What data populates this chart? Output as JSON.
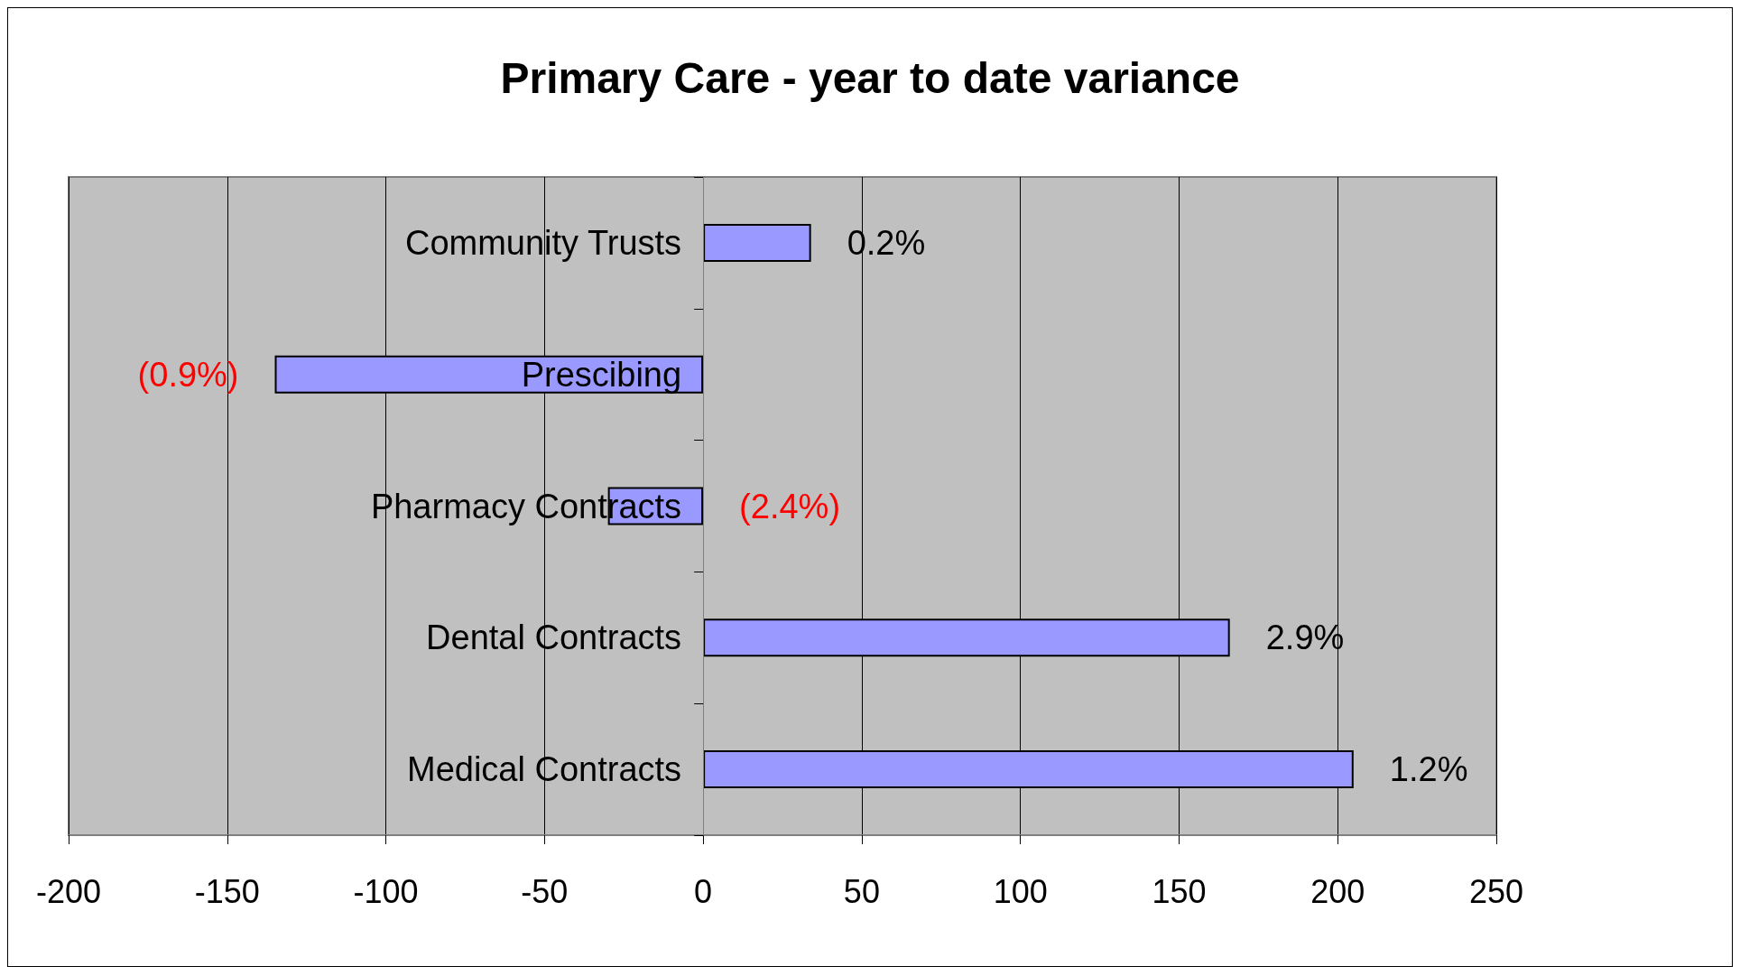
{
  "chart_data": {
    "type": "bar",
    "orientation": "horizontal",
    "title": "Primary Care - year to date variance",
    "categories": [
      "Community Trusts",
      "Prescibing",
      "Pharmacy Contracts",
      "Dental Contracts",
      "Medical Contracts"
    ],
    "values": [
      34,
      -135,
      -30,
      166,
      205
    ],
    "annotations": [
      {
        "text": "0.2%",
        "x": 34,
        "y": "Community Trusts"
      },
      {
        "text": "(0.9%)",
        "x": -135,
        "y": "Prescibing"
      },
      {
        "text": "(2.4%)",
        "x": 0,
        "y": "Pharmacy Contracts"
      },
      {
        "text": "2.9%",
        "x": 166,
        "y": "Dental Contracts"
      },
      {
        "text": "1.2%",
        "x": 205,
        "y": "Medical Contracts"
      }
    ],
    "color": "#9999ff",
    "xlim": [
      -200,
      250
    ],
    "xticks": [
      -200,
      -150,
      -100,
      -50,
      0,
      50,
      100,
      150,
      200,
      250
    ],
    "grid": "x"
  }
}
